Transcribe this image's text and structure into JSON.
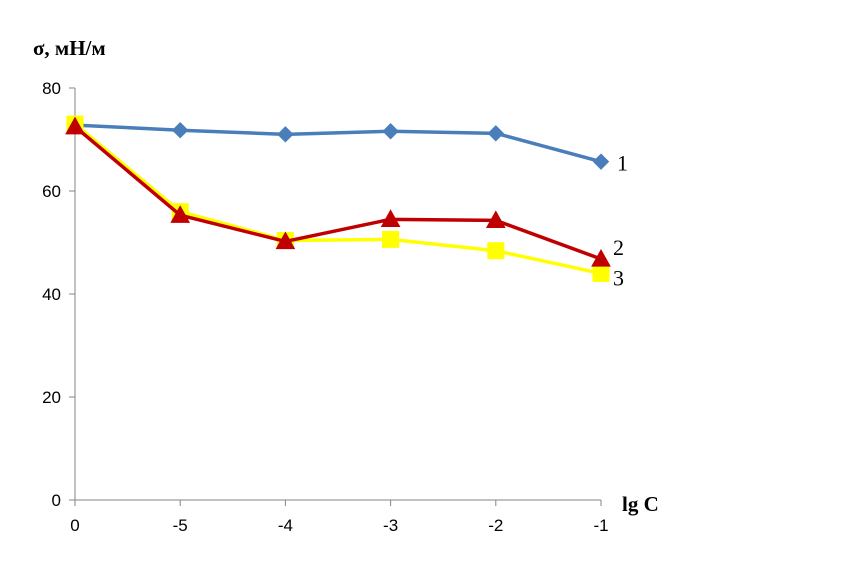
{
  "chart_data": {
    "type": "line",
    "title": "",
    "ylabel": "σ, мН/м",
    "xlabel": "lg C",
    "categories": [
      "0",
      "-5",
      "-4",
      "-3",
      "-2",
      "-1"
    ],
    "ylim": [
      0,
      80
    ],
    "yticks": [
      "0",
      "20",
      "40",
      "60",
      "80"
    ],
    "grid": false,
    "legend": "none",
    "series": [
      {
        "name": "1",
        "color": "#4a7ebb",
        "marker": "diamond",
        "values": [
          72.8,
          71.8,
          71.0,
          71.6,
          71.2,
          65.7
        ]
      },
      {
        "name": "3",
        "color": "#ffff00",
        "marker": "square",
        "values": [
          73.0,
          56.0,
          50.4,
          50.6,
          48.4,
          44.0
        ]
      },
      {
        "name": "2",
        "color": "#c00000",
        "marker": "triangle",
        "values": [
          72.5,
          55.3,
          50.2,
          54.5,
          54.3,
          46.8
        ]
      }
    ]
  }
}
